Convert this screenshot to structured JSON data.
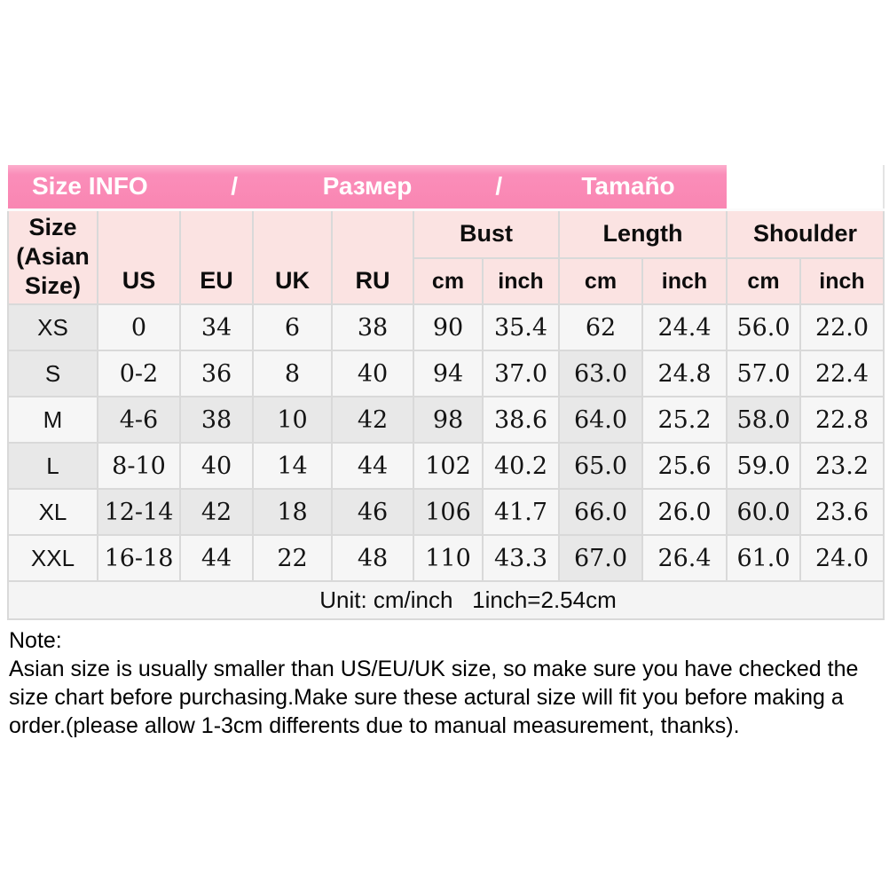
{
  "colors": {
    "banner_pink": "#fa8db9",
    "header_pink": "#fbe3e2",
    "cell_light": "#f6f6f6",
    "cell_gray": "#e8e8e8",
    "border_gray": "#d9d9d9",
    "banner_text": "#ffffff"
  },
  "banner": {
    "items": [
      "Size INFO",
      "/",
      "Размер",
      "/",
      "Tamaño"
    ]
  },
  "table": {
    "corner_header_lines": [
      "Size",
      "(Asian",
      "Size)"
    ],
    "region_headers": [
      "US",
      "EU",
      "UK",
      "RU"
    ],
    "group_headers": [
      "Bust",
      "Length",
      "Shoulder"
    ],
    "sub_headers": [
      "cm",
      "inch",
      "cm",
      "inch",
      "cm",
      "inch"
    ],
    "rows": [
      {
        "size": "XS",
        "values": [
          "0",
          "34",
          "6",
          "38",
          "90",
          "35.4",
          "62",
          "24.4",
          "56.0",
          "22.0"
        ]
      },
      {
        "size": "S",
        "values": [
          "0-2",
          "36",
          "8",
          "40",
          "94",
          "37.0",
          "63.0",
          "24.8",
          "57.0",
          "22.4"
        ]
      },
      {
        "size": "M",
        "values": [
          "4-6",
          "38",
          "10",
          "42",
          "98",
          "38.6",
          "64.0",
          "25.2",
          "58.0",
          "22.8"
        ]
      },
      {
        "size": "L",
        "values": [
          "8-10",
          "40",
          "14",
          "44",
          "102",
          "40.2",
          "65.0",
          "25.6",
          "59.0",
          "23.2"
        ]
      },
      {
        "size": "XL",
        "values": [
          "12-14",
          "42",
          "18",
          "46",
          "106",
          "41.7",
          "66.0",
          "26.0",
          "60.0",
          "23.6"
        ]
      },
      {
        "size": "XXL",
        "values": [
          "16-18",
          "44",
          "22",
          "48",
          "110",
          "43.3",
          "67.0",
          "26.4",
          "61.0",
          "24.0"
        ]
      }
    ],
    "shading": [
      [
        1,
        0,
        0,
        0,
        0,
        0,
        0,
        0,
        0,
        0,
        0
      ],
      [
        1,
        0,
        0,
        0,
        0,
        0,
        0,
        1,
        0,
        0,
        0
      ],
      [
        0,
        1,
        1,
        1,
        1,
        1,
        0,
        1,
        0,
        1,
        0
      ],
      [
        1,
        0,
        0,
        0,
        0,
        0,
        0,
        1,
        0,
        0,
        0
      ],
      [
        0,
        1,
        1,
        1,
        1,
        1,
        0,
        1,
        0,
        1,
        0
      ],
      [
        0,
        0,
        0,
        0,
        0,
        0,
        0,
        1,
        0,
        0,
        0
      ]
    ],
    "unit_text": "Unit: cm/inch   1inch=2.54cm"
  },
  "note": {
    "title": "Note:",
    "lines": [
      "Asian size is usually smaller than US/EU/UK size, so make sure you have checked the",
      "size chart before purchasing.Make sure these actural size will fit you before making a",
      "order.(please allow 1-3cm differents due to manual measurement, thanks)."
    ]
  }
}
